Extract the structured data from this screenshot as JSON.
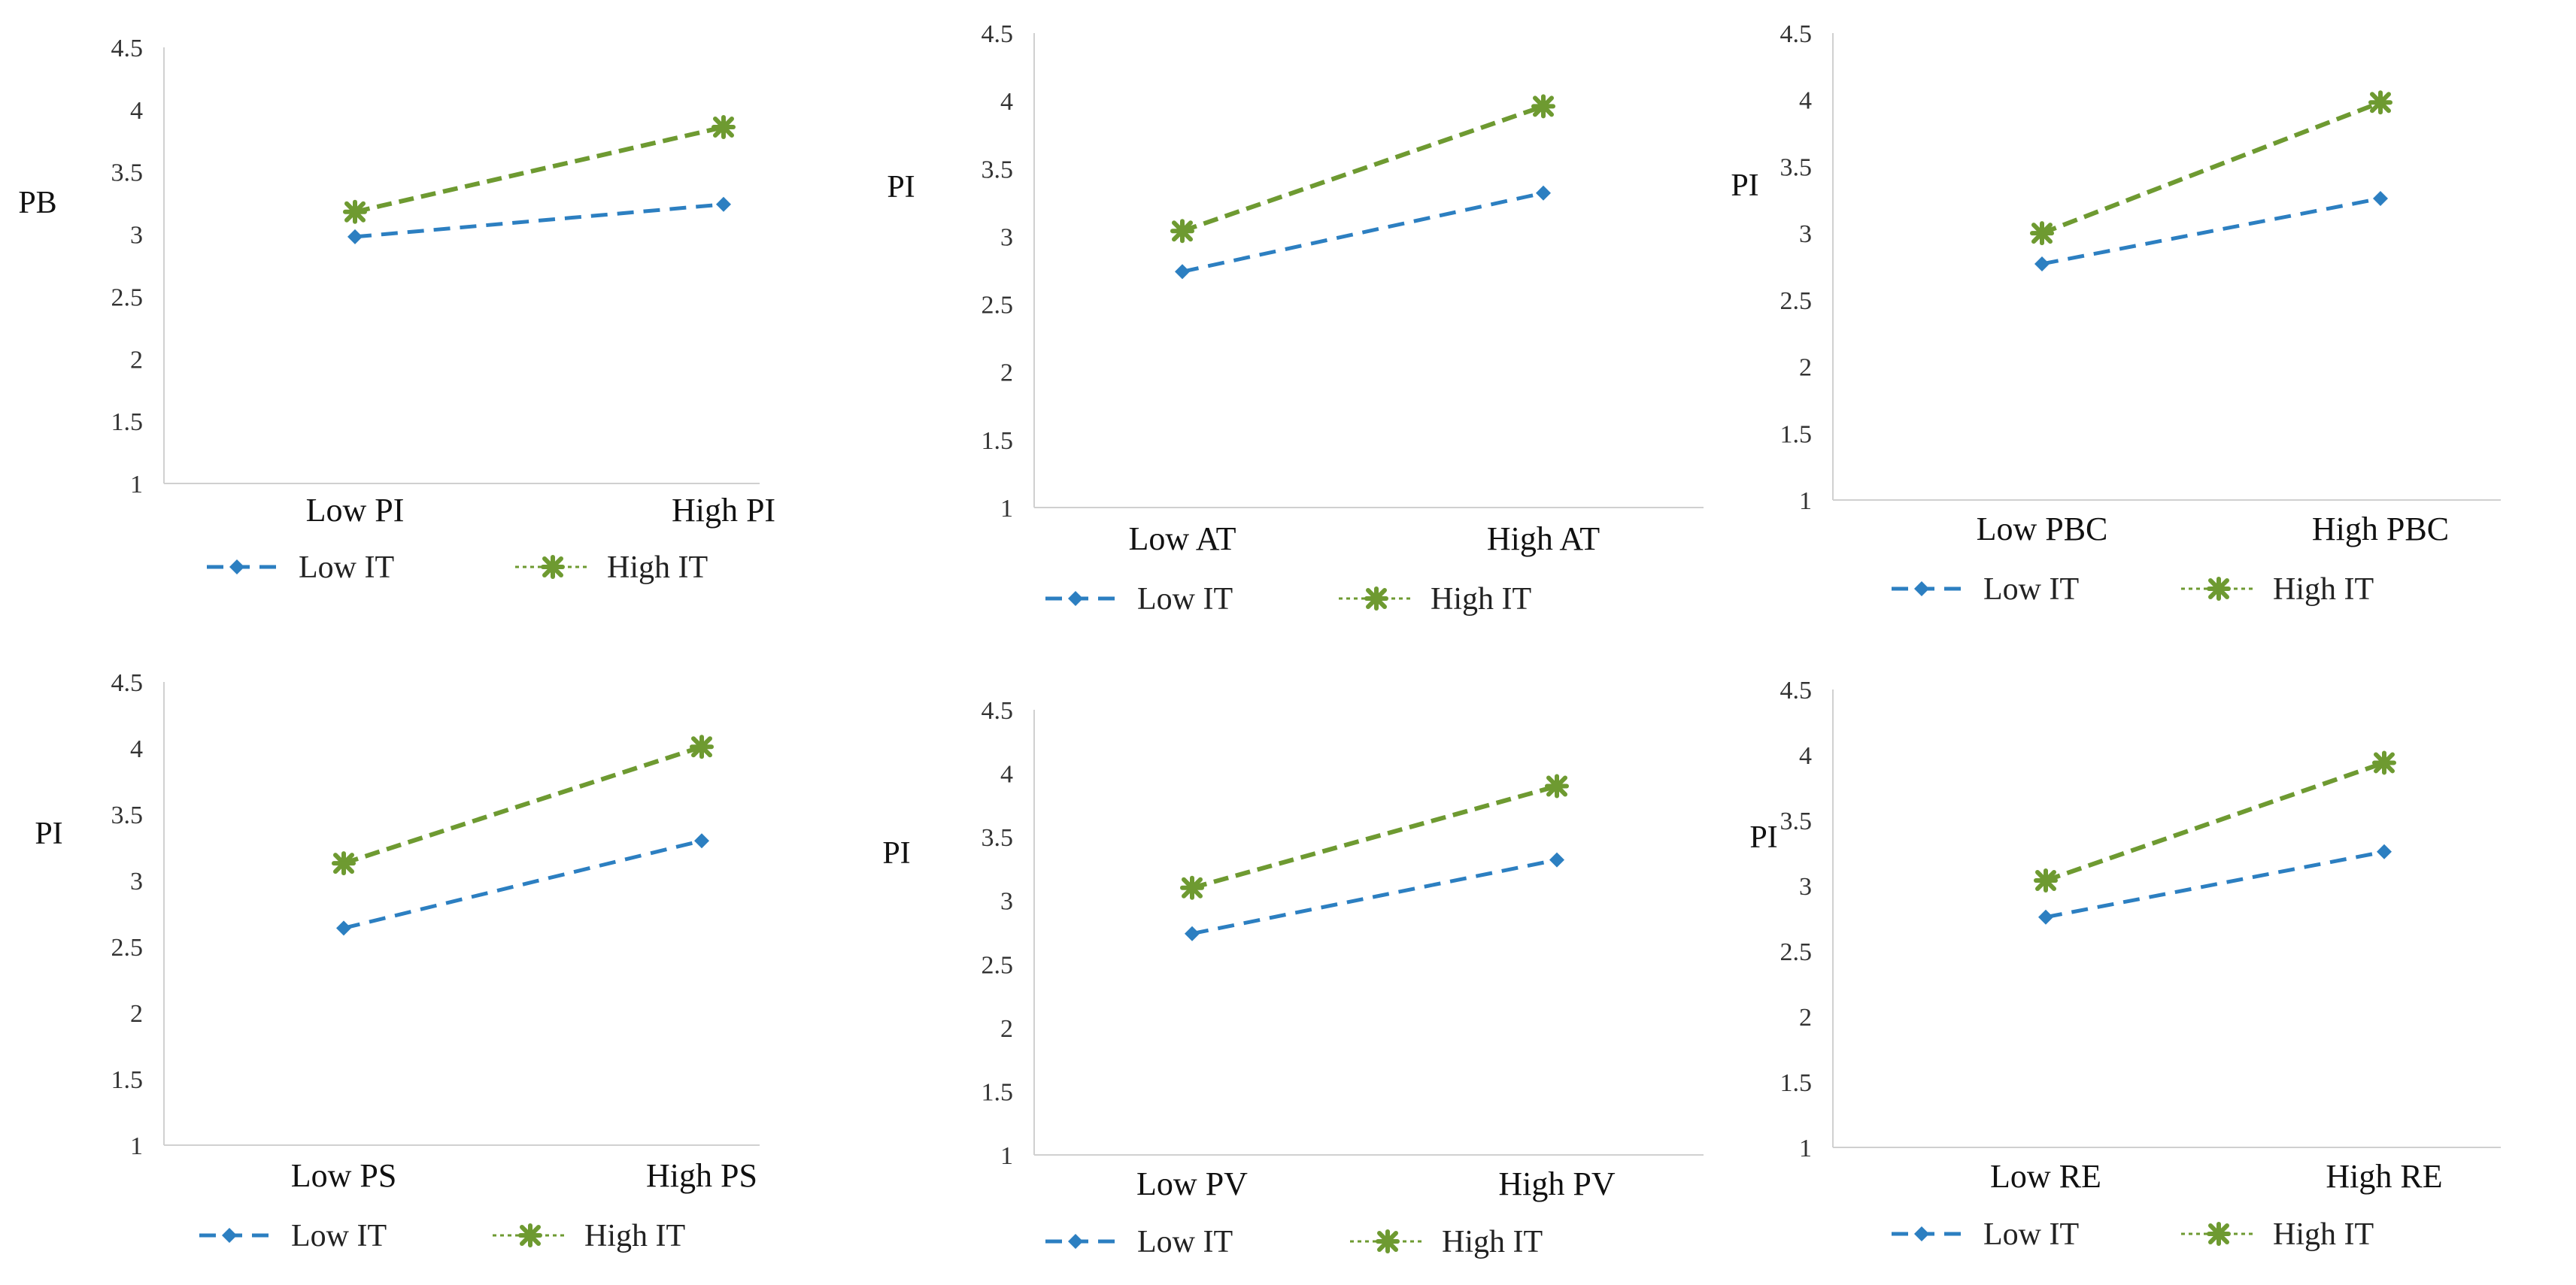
{
  "colors": {
    "low": "#2c7fc1",
    "high": "#6e9a31",
    "axis": "#d0d0d0"
  },
  "chart_data": [
    {
      "type": "line",
      "ylabel": "PB",
      "categories": [
        "Low PI",
        "High PI"
      ],
      "yticks": [
        "1",
        "1.5",
        "2",
        "2.5",
        "3",
        "3.5",
        "4",
        "4.5"
      ],
      "ylim": [
        1,
        4.5
      ],
      "series": [
        {
          "name": "Low IT",
          "values": [
            2.98,
            3.24
          ]
        },
        {
          "name": "High IT",
          "values": [
            3.18,
            3.86
          ]
        }
      ]
    },
    {
      "type": "line",
      "ylabel": "PI",
      "categories": [
        "Low AT",
        "High AT"
      ],
      "yticks": [
        "1",
        "1.5",
        "2",
        "2.5",
        "3",
        "3.5",
        "4",
        "4.5"
      ],
      "ylim": [
        1,
        4.5
      ],
      "series": [
        {
          "name": "Low IT",
          "values": [
            2.74,
            3.32
          ]
        },
        {
          "name": "High IT",
          "values": [
            3.04,
            3.96
          ]
        }
      ]
    },
    {
      "type": "line",
      "ylabel": "PI",
      "categories": [
        "Low PBC",
        "High PBC"
      ],
      "yticks": [
        "1",
        "1.5",
        "2",
        "2.5",
        "3",
        "3.5",
        "4",
        "4.5"
      ],
      "ylim": [
        1,
        4.5
      ],
      "series": [
        {
          "name": "Low IT",
          "values": [
            2.77,
            3.26
          ]
        },
        {
          "name": "High IT",
          "values": [
            3.0,
            3.98
          ]
        }
      ]
    },
    {
      "type": "line",
      "ylabel": "PI",
      "categories": [
        "Low PS",
        "High PS"
      ],
      "yticks": [
        "1",
        "1.5",
        "2",
        "2.5",
        "3",
        "3.5",
        "4",
        "4.5"
      ],
      "ylim": [
        1,
        4.5
      ],
      "series": [
        {
          "name": "Low IT",
          "values": [
            2.64,
            3.3
          ]
        },
        {
          "name": "High IT",
          "values": [
            3.13,
            4.01
          ]
        }
      ]
    },
    {
      "type": "line",
      "ylabel": "PI",
      "categories": [
        "Low PV",
        "High PV"
      ],
      "yticks": [
        "1",
        "1.5",
        "2",
        "2.5",
        "3",
        "3.5",
        "4",
        "4.5"
      ],
      "ylim": [
        1,
        4.5
      ],
      "series": [
        {
          "name": "Low IT",
          "values": [
            2.74,
            3.32
          ]
        },
        {
          "name": "High IT",
          "values": [
            3.1,
            3.9
          ]
        }
      ]
    },
    {
      "type": "line",
      "ylabel": "PI",
      "categories": [
        "Low RE",
        "High RE"
      ],
      "yticks": [
        "1",
        "1.5",
        "2",
        "2.5",
        "3",
        "3.5",
        "4",
        "4.5"
      ],
      "ylim": [
        1,
        4.5
      ],
      "series": [
        {
          "name": "Low IT",
          "values": [
            2.76,
            3.26
          ]
        },
        {
          "name": "High IT",
          "values": [
            3.04,
            3.94
          ]
        }
      ]
    }
  ]
}
